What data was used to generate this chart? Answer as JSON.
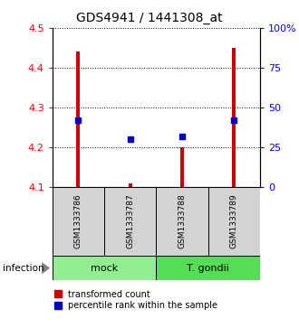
{
  "title": "GDS4941 / 1441308_at",
  "samples": [
    "GSM1333786",
    "GSM1333787",
    "GSM1333788",
    "GSM1333789"
  ],
  "bar_values": [
    4.44,
    4.11,
    4.2,
    4.45
  ],
  "bar_base": 4.1,
  "percentile_values": [
    42,
    30,
    32,
    42
  ],
  "y_left_min": 4.1,
  "y_left_max": 4.5,
  "y_right_min": 0,
  "y_right_max": 100,
  "yticks_left": [
    4.1,
    4.2,
    4.3,
    4.4,
    4.5
  ],
  "yticks_right": [
    0,
    25,
    50,
    75,
    100
  ],
  "ytick_labels_right": [
    "0",
    "25",
    "50",
    "75",
    "100%"
  ],
  "bar_color": "#CC0000",
  "bar_width": 0.07,
  "percentile_color": "#0000CC",
  "percentile_marker_size": 5,
  "mock_color": "#90EE90",
  "gondii_color": "#55DD55",
  "sample_bg": "#D3D3D3",
  "infection_label": "infection",
  "legend_bar_label": "transformed count",
  "legend_pct_label": "percentile rank within the sample",
  "x_positions": [
    0.5,
    1.5,
    2.5,
    3.5
  ],
  "x_lim": [
    0,
    4
  ]
}
